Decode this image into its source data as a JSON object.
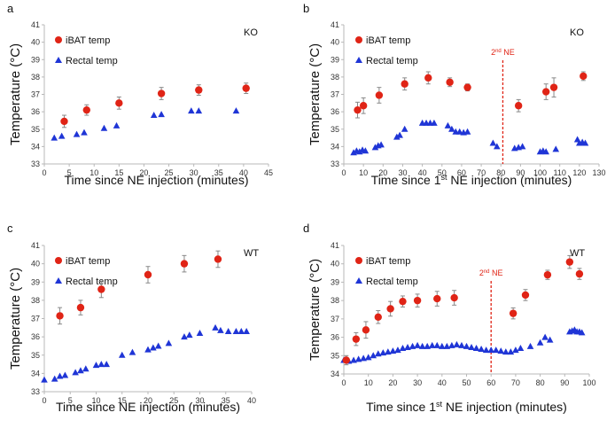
{
  "colors": {
    "ibat": "#e02416",
    "rectal": "#1f35d6",
    "marker_line": "#e02416",
    "axis": "#b8b8b8"
  },
  "chart_data": [
    {
      "panel": "a",
      "type": "scatter",
      "genotype": "KO",
      "ylabel": "Temperature (°C)",
      "xlabel": "Time since NE injection (minutes)",
      "xlim": [
        0,
        45
      ],
      "ylim": [
        33,
        41
      ],
      "xticks": [
        0,
        5,
        10,
        15,
        20,
        25,
        30,
        35,
        40,
        45
      ],
      "yticks": [
        33,
        34,
        35,
        36,
        37,
        38,
        39,
        40,
        41
      ],
      "legend": [
        "iBAT temp",
        "Rectal temp"
      ],
      "series": [
        {
          "name": "iBAT temp",
          "x": [
            4,
            8.5,
            15,
            23.5,
            31,
            40.5
          ],
          "y": [
            35.45,
            36.1,
            36.5,
            37.05,
            37.25,
            37.35
          ],
          "err": [
            0.35,
            0.3,
            0.35,
            0.35,
            0.3,
            0.3
          ]
        },
        {
          "name": "Rectal temp",
          "x": [
            2,
            3.5,
            6.5,
            8,
            12,
            14.5,
            22,
            23.5,
            29.5,
            31,
            38.5
          ],
          "y": [
            34.5,
            34.6,
            34.7,
            34.8,
            35.05,
            35.2,
            35.8,
            35.85,
            36.05,
            36.05,
            36.05
          ]
        }
      ]
    },
    {
      "panel": "b",
      "type": "scatter",
      "genotype": "KO",
      "ylabel": "Temperature (°C)",
      "xlabel_prefix": "Time since 1",
      "xlabel_sup": "st",
      "xlabel_suffix": " NE injection (minutes)",
      "xlim": [
        0,
        130
      ],
      "ylim": [
        33,
        41
      ],
      "xticks": [
        0,
        10,
        20,
        30,
        40,
        50,
        60,
        70,
        80,
        90,
        100,
        110,
        120,
        130
      ],
      "yticks": [
        33,
        34,
        35,
        36,
        37,
        38,
        39,
        40,
        41
      ],
      "legend": [
        "iBAT temp",
        "Rectal temp"
      ],
      "marker_line": {
        "x": 81,
        "label_num": "2",
        "label_sup": "nd",
        "label_rest": " NE"
      },
      "series": [
        {
          "name": "iBAT temp",
          "x": [
            7,
            10,
            18,
            31,
            43,
            54,
            63,
            89,
            103,
            107,
            122
          ],
          "y": [
            36.1,
            36.35,
            36.95,
            37.6,
            37.95,
            37.7,
            37.4,
            36.35,
            37.15,
            37.4,
            38.05
          ],
          "err": [
            0.45,
            0.45,
            0.45,
            0.35,
            0.35,
            0.25,
            0.2,
            0.35,
            0.45,
            0.55,
            0.25
          ]
        },
        {
          "name": "Rectal temp",
          "x": [
            5,
            6.5,
            8,
            9.5,
            11,
            16,
            17.5,
            19,
            27,
            28.5,
            31,
            40,
            42,
            44,
            46,
            53,
            55,
            57,
            59,
            61,
            63,
            76,
            78,
            87,
            89,
            91,
            100,
            101.5,
            103,
            108,
            119,
            120,
            121.5,
            123
          ],
          "y": [
            33.65,
            33.75,
            33.7,
            33.8,
            33.75,
            33.95,
            34.05,
            34.1,
            34.55,
            34.65,
            35.0,
            35.35,
            35.35,
            35.35,
            35.35,
            35.2,
            35.0,
            34.85,
            34.85,
            34.8,
            34.85,
            34.2,
            34.0,
            33.9,
            33.95,
            34.0,
            33.7,
            33.75,
            33.7,
            33.85,
            34.4,
            34.2,
            34.25,
            34.2
          ]
        }
      ]
    },
    {
      "panel": "c",
      "type": "scatter",
      "genotype": "WT",
      "ylabel": "Temperature (°C)",
      "xlabel": "Time since NE injection (minutes)",
      "xlim": [
        0,
        40
      ],
      "ylim": [
        33,
        41
      ],
      "xticks": [
        0,
        5,
        10,
        15,
        20,
        25,
        30,
        35,
        40
      ],
      "yticks": [
        33,
        34,
        35,
        36,
        37,
        38,
        39,
        40,
        41
      ],
      "legend": [
        "iBAT temp",
        "Rectal temp"
      ],
      "series": [
        {
          "name": "iBAT temp",
          "x": [
            3,
            7,
            11,
            20,
            27,
            33.5
          ],
          "y": [
            37.15,
            37.6,
            38.6,
            39.4,
            40.0,
            40.25
          ],
          "err": [
            0.45,
            0.4,
            0.45,
            0.45,
            0.45,
            0.45
          ]
        },
        {
          "name": "Rectal temp",
          "x": [
            0,
            2,
            3,
            4,
            6,
            7,
            8,
            10,
            11,
            12,
            15,
            17,
            20,
            21,
            22,
            24,
            27,
            28,
            30,
            33,
            34,
            35.5,
            37,
            38,
            39
          ],
          "y": [
            33.65,
            33.7,
            33.85,
            33.9,
            34.05,
            34.15,
            34.25,
            34.45,
            34.5,
            34.5,
            35.0,
            35.15,
            35.3,
            35.4,
            35.5,
            35.65,
            36.0,
            36.1,
            36.2,
            36.5,
            36.35,
            36.3,
            36.3,
            36.3,
            36.3
          ]
        }
      ]
    },
    {
      "panel": "d",
      "type": "scatter",
      "genotype": "WT",
      "ylabel": "Temperature (°C)",
      "xlabel_prefix": "Time since 1",
      "xlabel_sup": "st",
      "xlabel_suffix": " NE injection (minutes)",
      "xlim": [
        0,
        100
      ],
      "ylim": [
        34,
        41
      ],
      "xticks": [
        0,
        10,
        20,
        30,
        40,
        50,
        60,
        70,
        80,
        90,
        100
      ],
      "yticks": [
        34,
        35,
        36,
        37,
        38,
        39,
        40,
        41
      ],
      "legend": [
        "iBAT temp",
        "Rectal temp"
      ],
      "marker_line": {
        "x": 60,
        "label_num": "2",
        "label_sup": "nd",
        "label_rest": " NE"
      },
      "series": [
        {
          "name": "iBAT temp",
          "x": [
            1,
            5,
            9,
            14,
            19,
            24,
            30,
            38,
            45,
            69,
            74,
            83,
            92,
            96
          ],
          "y": [
            34.75,
            35.9,
            36.4,
            37.1,
            37.55,
            37.95,
            38.0,
            38.1,
            38.15,
            37.3,
            38.3,
            39.4,
            40.1,
            39.45
          ],
          "err": [
            0.25,
            0.35,
            0.45,
            0.35,
            0.4,
            0.3,
            0.35,
            0.4,
            0.4,
            0.3,
            0.3,
            0.25,
            0.35,
            0.3
          ]
        },
        {
          "name": "Rectal temp",
          "x": [
            0,
            2,
            4,
            6,
            8,
            10,
            12,
            14,
            16,
            18,
            20,
            22,
            24,
            26,
            28,
            30,
            32,
            34,
            36,
            38,
            40,
            42,
            44,
            46,
            48,
            50,
            52,
            54,
            56,
            58,
            60,
            62,
            64,
            66,
            68,
            70,
            72,
            76,
            80,
            82,
            84,
            92,
            93,
            94,
            95,
            96,
            97
          ],
          "y": [
            34.75,
            34.7,
            34.75,
            34.8,
            34.85,
            34.9,
            35.0,
            35.1,
            35.15,
            35.2,
            35.25,
            35.3,
            35.4,
            35.45,
            35.5,
            35.55,
            35.5,
            35.5,
            35.55,
            35.55,
            35.5,
            35.5,
            35.55,
            35.6,
            35.55,
            35.5,
            35.45,
            35.4,
            35.35,
            35.3,
            35.3,
            35.3,
            35.25,
            35.2,
            35.2,
            35.3,
            35.4,
            35.5,
            35.7,
            36.0,
            35.85,
            36.3,
            36.35,
            36.4,
            36.3,
            36.3,
            36.25
          ]
        }
      ]
    }
  ]
}
